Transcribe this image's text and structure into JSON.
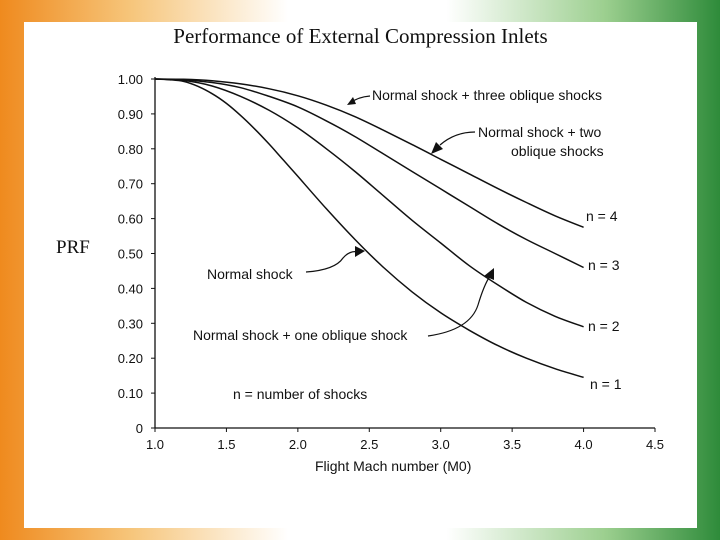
{
  "slide": {
    "title": "Performance of External Compression Inlets",
    "side_label": "PRF"
  },
  "chart_data": {
    "type": "line",
    "title": "Performance of External Compression Inlets",
    "xlabel": "Flight Mach number (M0)",
    "ylabel": "PRF",
    "xlim": [
      1.0,
      4.5
    ],
    "ylim": [
      0,
      1.0
    ],
    "x_ticks": [
      "1.0",
      "1.5",
      "2.0",
      "2.5",
      "3.0",
      "3.5",
      "4.0",
      "4.5"
    ],
    "y_ticks": [
      "0",
      "0.10",
      "0.20",
      "0.30",
      "0.40",
      "0.50",
      "0.60",
      "0.70",
      "0.80",
      "0.90",
      "1.00"
    ],
    "grid": false,
    "series": [
      {
        "name": "n = 1",
        "x": [
          1.0,
          1.1,
          1.2,
          1.3,
          1.4,
          1.5,
          1.6,
          1.7,
          1.8,
          1.9,
          2.0,
          2.2,
          2.4,
          2.6,
          2.8,
          3.0,
          3.2,
          3.4,
          3.6,
          3.8,
          4.0
        ],
        "y": [
          1.0,
          0.998,
          0.993,
          0.979,
          0.958,
          0.93,
          0.895,
          0.856,
          0.813,
          0.767,
          0.721,
          0.628,
          0.54,
          0.46,
          0.39,
          0.33,
          0.28,
          0.236,
          0.2,
          0.17,
          0.145
        ]
      },
      {
        "name": "n = 2",
        "x": [
          1.0,
          1.2,
          1.4,
          1.6,
          1.8,
          2.0,
          2.2,
          2.4,
          2.6,
          2.8,
          3.0,
          3.2,
          3.4,
          3.6,
          3.8,
          4.0
        ],
        "y": [
          1.0,
          0.996,
          0.98,
          0.95,
          0.91,
          0.86,
          0.8,
          0.735,
          0.665,
          0.595,
          0.53,
          0.465,
          0.41,
          0.36,
          0.32,
          0.29
        ]
      },
      {
        "name": "n = 3",
        "x": [
          1.0,
          1.2,
          1.4,
          1.6,
          1.8,
          2.0,
          2.2,
          2.4,
          2.6,
          2.8,
          3.0,
          3.2,
          3.4,
          3.6,
          3.8,
          4.0
        ],
        "y": [
          1.0,
          0.998,
          0.99,
          0.975,
          0.95,
          0.92,
          0.88,
          0.835,
          0.785,
          0.735,
          0.685,
          0.635,
          0.585,
          0.54,
          0.5,
          0.46
        ]
      },
      {
        "name": "n = 4",
        "x": [
          1.0,
          1.2,
          1.4,
          1.6,
          1.8,
          2.0,
          2.2,
          2.4,
          2.6,
          2.8,
          3.0,
          3.2,
          3.4,
          3.6,
          3.8,
          4.0
        ],
        "y": [
          1.0,
          0.999,
          0.995,
          0.986,
          0.972,
          0.952,
          0.925,
          0.892,
          0.853,
          0.812,
          0.77,
          0.728,
          0.686,
          0.646,
          0.608,
          0.575
        ]
      }
    ],
    "annotations": [
      {
        "text": "Normal shock + three oblique shocks",
        "target_series": "n = 4"
      },
      {
        "text": "Normal shock + two",
        "text2": "oblique shocks",
        "target_series": "n = 3"
      },
      {
        "text": "Normal shock",
        "target_series": "n = 1"
      },
      {
        "text": "Normal shock + one oblique shock",
        "target_series": "n = 2"
      },
      {
        "text": "n = number of shocks"
      }
    ],
    "series_labels": [
      "n = 4",
      "n = 3",
      "n = 2",
      "n = 1"
    ]
  }
}
